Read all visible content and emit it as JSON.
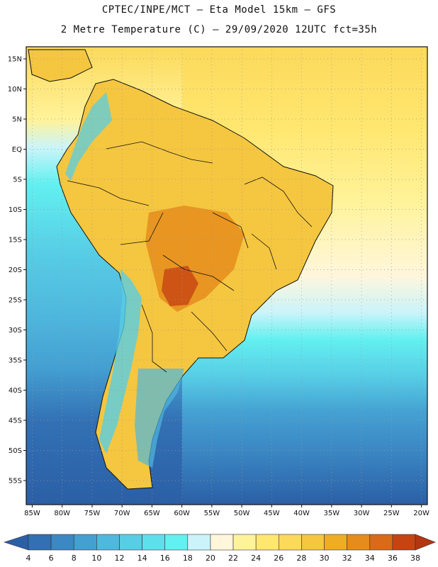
{
  "header": {
    "line1": "CPTEC/INPE/MCT –  Eta Model 15km – GFS",
    "line2": "2 Metre Temperature (C) – 29/09/2020 12UTC fct=35h"
  },
  "map": {
    "lon_min": -86,
    "lon_max": -19,
    "lat_min": -59,
    "lat_max": 17,
    "lat_ticks": [
      "15N",
      "10N",
      "5N",
      "EQ",
      "5S",
      "10S",
      "15S",
      "20S",
      "25S",
      "30S",
      "35S",
      "40S",
      "45S",
      "50S",
      "55S"
    ],
    "lat_values": [
      15,
      10,
      5,
      0,
      -5,
      -10,
      -15,
      -20,
      -25,
      -30,
      -35,
      -40,
      -45,
      -50,
      -55
    ],
    "lon_ticks": [
      "85W",
      "80W",
      "75W",
      "70W",
      "65W",
      "60W",
      "55W",
      "50W",
      "45W",
      "40W",
      "35W",
      "30W",
      "25W",
      "20W"
    ],
    "lon_values": [
      -85,
      -80,
      -75,
      -70,
      -65,
      -60,
      -55,
      -50,
      -45,
      -40,
      -35,
      -30,
      -25,
      -20
    ],
    "grid": true
  },
  "colorbar": {
    "labels": [
      "4",
      "6",
      "8",
      "10",
      "12",
      "14",
      "16",
      "18",
      "20",
      "22",
      "24",
      "26",
      "28",
      "30",
      "32",
      "34",
      "36",
      "38"
    ],
    "colors": [
      "#2b5fa6",
      "#3270b4",
      "#3b88c4",
      "#44a0d2",
      "#4fb8de",
      "#57cde6",
      "#5ee0ec",
      "#62f0f0",
      "#cbf4fa",
      "#fff6dc",
      "#fff39a",
      "#ffe770",
      "#fcd95a",
      "#f5c63f",
      "#eead22",
      "#e58c1c",
      "#da6a18",
      "#c64412",
      "#b23610"
    ]
  }
}
